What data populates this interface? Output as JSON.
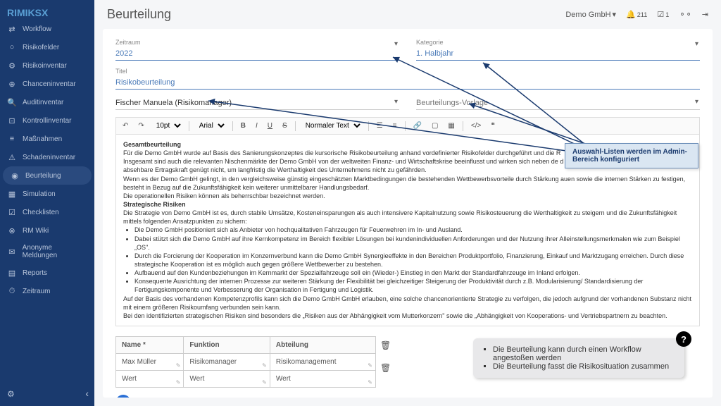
{
  "brand": "RIMIKS",
  "brand_accent": "X",
  "company": "Demo GmbH",
  "notifications": "211",
  "tasks": "1",
  "nav": [
    {
      "icon": "⇄",
      "label": "Workflow"
    },
    {
      "icon": "○",
      "label": "Risikofelder"
    },
    {
      "icon": "⚙",
      "label": "Risikoinventar"
    },
    {
      "icon": "⊕",
      "label": "Chanceninventar"
    },
    {
      "icon": "🔍",
      "label": "Auditinventar"
    },
    {
      "icon": "⊡",
      "label": "Kontrollinventar"
    },
    {
      "icon": "≡",
      "label": "Maßnahmen"
    },
    {
      "icon": "⚠",
      "label": "Schadeninventar"
    },
    {
      "icon": "◉",
      "label": "Beurteilung",
      "active": true
    },
    {
      "icon": "▦",
      "label": "Simulation"
    },
    {
      "icon": "☑",
      "label": "Checklisten"
    },
    {
      "icon": "⊗",
      "label": "RM Wiki"
    },
    {
      "icon": "✉",
      "label": "Anonyme Meldungen"
    },
    {
      "icon": "▤",
      "label": "Reports"
    },
    {
      "icon": "⏱",
      "label": "Zeitraum"
    }
  ],
  "page_title": "Beurteilung",
  "fields": {
    "zeitraum_label": "Zeitraum",
    "zeitraum_value": "2022",
    "kategorie_label": "Kategorie",
    "kategorie_value": "1. Halbjahr",
    "titel_label": "Titel",
    "titel_value": "Risikobeurteilung",
    "owner_value": "Fischer Manuela (Risikomanager)",
    "vorlage_placeholder": "Beurteilungs-Vorlage"
  },
  "toolbar": {
    "fontsize": "10pt",
    "font": "Arial",
    "format": "Normaler Text"
  },
  "editor": {
    "h1": "Gesamtbeurteilung",
    "p1": "Für die Demo GmbH wurde auf Basis des Sanierungskonzeptes die kursorische Risikobeurteilung anhand vordefinierter Risikofelder durchgeführt und die R",
    "p2": "Insgesamt sind auch die relevanten Nischenmärkte der Demo GmbH von der weltweiten Finanz- und Wirtschaftskrise beeinflusst und wirken sich neben de",
    "p2b": "d Margendruck aus. Die gegenwärtige und absehbare Ertragskraft genügt nicht, um langfristig die Werthaltigkeit des Unternehmens nicht zu gefährden.",
    "p3": "Wenn es der Demo GmbH gelingt, in den vergleichsweise günstig eingeschätzten Marktbedingungen die bestehenden Wettbewerbsvorteile durch Stärkung",
    "p3b": "auen sowie die internen Stärken zu festigen, besteht in Bezug auf die Zukunftsfähigkeit kein weiterer unmittelbarer Handlungsbedarf.",
    "p4": "Die operationellen Risiken können als beherrschbar bezeichnet werden.",
    "h2": "Strategische Risiken",
    "p5": "Die Strategie von Demo GmbH ist es, durch stabile Umsätze, Kosteneinsparungen als auch intensivere Kapitalnutzung sowie Risikosteuerung die Werthaltigkeit zu steigern und die Zukunftsfähigkeit mittels folgenden Ansatzpunkten zu sichern:",
    "b1": "Die Demo GmbH positioniert sich als Anbieter von hochqualitativen Fahrzeugen für Feuerwehren im In- und Ausland.",
    "b2": "Dabei stützt sich die Demo GmbH auf ihre Kernkompetenz im Bereich flexibler Lösungen bei kundenindividuellen Anforderungen und der Nutzung ihrer Alleinstellungsmerkmalen wie zum Beispiel „OS\".",
    "b3": "Durch die Forcierung der Kooperation im Konzernverbund kann die Demo GmbH Synergieeffekte in den Bereichen Produktportfolio, Finanzierung, Einkauf und Marktzugang erreichen. Durch diese strategische Kooperation ist es möglich auch gegen größere Wettbewerber zu bestehen.",
    "b4": "Aufbauend auf den Kundenbeziehungen im Kernmarkt der Spezialfahrzeuge soll ein (Wieder-) Einstieg in den Markt der Standardfahrzeuge im Inland erfolgen.",
    "b5": "Konsequente Ausrichtung der internen Prozesse zur weiteren Stärkung der Flexibilität bei gleichzeitiger Steigerung der Produktivität durch z.B. Modularisierung/ Standardisierung der Fertigungskomponente und Verbesserung der Organisation in Fertigung und Logistik.",
    "p6": "Auf der Basis des vorhandenen Kompetenzprofils kann sich die Demo GmbH GmbH erlauben, eine solche chancenorientierte Strategie zu verfolgen, die jedoch aufgrund der vorhandenen Substanz nicht mit einem größeren Risikoumfang verbunden sein kann.",
    "p7": "Bei den identifizierten strategischen Risiken sind besonders die „Risiken aus der Abhängigkeit vom Mutterkonzern\" sowie die „Abhängigkeit von Kooperations- und Vertriebspartnern zu beachten."
  },
  "table": {
    "cols": [
      "Name *",
      "Funktion",
      "Abteilung"
    ],
    "row1": [
      "Max Müller",
      "Risikomanager",
      "Risikomanagement"
    ],
    "placeholder": "Wert"
  },
  "callout_text": "Auswahl-Listen werden im Admin-Bereich konfiguriert",
  "hint": {
    "l1": "Die Beurteilung kann durch einen Workflow angestoßen werden",
    "l2": "Die Beurteilung fasst die Risikosituation zusammen"
  },
  "colors": {
    "sidebar_bg": "#1a3a6e",
    "accent": "#4a7ab8",
    "callout_bg": "#dae6f2",
    "callout_border": "#6a8db8",
    "hint_bg": "#e8e8ea",
    "add_btn": "#2a6fd6"
  }
}
